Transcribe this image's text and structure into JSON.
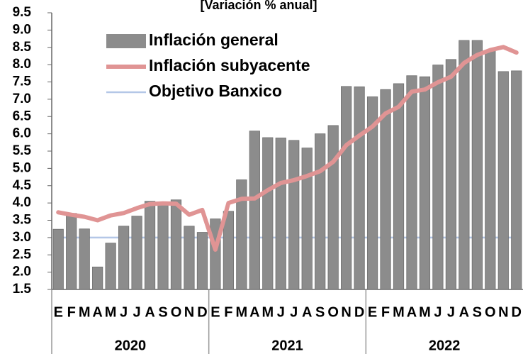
{
  "chart_data": {
    "type": "bar",
    "title": "[Variación % anual]",
    "categories": [
      "E",
      "F",
      "M",
      "A",
      "M",
      "J",
      "J",
      "A",
      "S",
      "O",
      "N",
      "D",
      "E",
      "F",
      "M",
      "A",
      "M",
      "J",
      "J",
      "A",
      "S",
      "O",
      "N",
      "D",
      "E",
      "F",
      "M",
      "A",
      "M",
      "J",
      "J",
      "A",
      "S",
      "O",
      "N",
      "D"
    ],
    "groups": [
      "2020",
      "2021",
      "2022"
    ],
    "series": [
      {
        "name": "Inflación general",
        "type": "bar",
        "color": "#8c8c8c",
        "values": [
          3.24,
          3.7,
          3.25,
          2.15,
          2.84,
          3.33,
          3.62,
          4.05,
          4.01,
          4.09,
          3.33,
          3.15,
          3.54,
          3.76,
          4.67,
          6.08,
          5.89,
          5.88,
          5.81,
          5.59,
          6.0,
          6.24,
          7.37,
          7.36,
          7.07,
          7.28,
          7.45,
          7.68,
          7.65,
          7.99,
          8.15,
          8.7,
          8.7,
          8.41,
          7.8,
          7.82
        ]
      },
      {
        "name": "Inflación subyacente",
        "type": "line",
        "color": "#e09494",
        "values": [
          3.73,
          3.66,
          3.6,
          3.5,
          3.64,
          3.71,
          3.85,
          3.97,
          3.99,
          3.98,
          3.66,
          3.8,
          2.65,
          4.0,
          4.12,
          4.13,
          4.37,
          4.58,
          4.66,
          4.78,
          4.92,
          5.19,
          5.67,
          5.95,
          6.21,
          6.59,
          6.78,
          7.22,
          7.28,
          7.49,
          7.65,
          8.05,
          8.28,
          8.42,
          8.51,
          8.35
        ]
      },
      {
        "name": "Objetivo Banxico",
        "type": "line",
        "color": "#b4c7e7",
        "values": [
          3,
          3,
          3,
          3,
          3,
          3,
          3,
          3,
          3,
          3,
          3,
          3,
          3,
          3,
          3,
          3,
          3,
          3,
          3,
          3,
          3,
          3,
          3,
          3,
          3,
          3,
          3,
          3,
          3,
          3,
          3,
          3,
          3,
          3,
          3,
          3
        ]
      }
    ],
    "ylim": [
      1.5,
      9.5
    ],
    "yticks": [
      1.5,
      {
        "value": 2,
        "label": "2.0"
      },
      2.5,
      {
        "value": 3,
        "label": "3.0"
      },
      3.5,
      {
        "value": 4,
        "label": "4.0"
      },
      4.5,
      {
        "value": 5,
        "label": "5.0"
      },
      5.5,
      {
        "value": 6,
        "label": "6.0"
      },
      6.5,
      {
        "value": 7,
        "label": "7.0"
      },
      7.5,
      {
        "value": 8,
        "label": "8.0"
      },
      8.5,
      {
        "value": 9,
        "label": "9.0"
      },
      9.5
    ],
    "legend": "upper left"
  }
}
